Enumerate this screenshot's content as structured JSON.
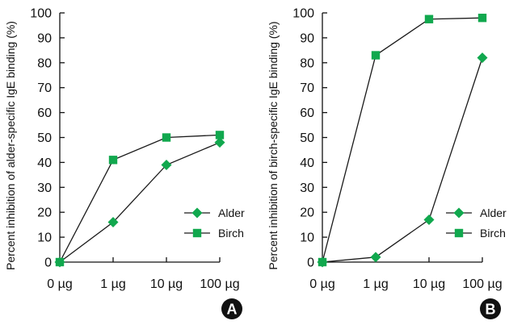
{
  "colors": {
    "marker": "#11a84e",
    "line": "#1a1a1a",
    "badge": "#111111"
  },
  "chart_data": [
    {
      "type": "line",
      "panel_label": "A",
      "categories": [
        "0 µg",
        "1 µg",
        "10 µg",
        "100 µg"
      ],
      "ylabel": "Percent inhibition of alder-specific IgE binding (%)",
      "ylim": [
        0,
        100
      ],
      "yticks": [
        "0",
        "10",
        "20",
        "30",
        "40",
        "50",
        "60",
        "70",
        "80",
        "90",
        "100"
      ],
      "legend_position": "right",
      "series": [
        {
          "name": "Alder",
          "marker": "diamond",
          "values": [
            0,
            16,
            39,
            48
          ]
        },
        {
          "name": "Birch",
          "marker": "square",
          "values": [
            0,
            41,
            50,
            51
          ]
        }
      ]
    },
    {
      "type": "line",
      "panel_label": "B",
      "categories": [
        "0 µg",
        "1 µg",
        "10 µg",
        "100 µg"
      ],
      "ylabel": "Percent inhibition of birch-specific IgE binding (%)",
      "ylim": [
        0,
        100
      ],
      "yticks": [
        "0",
        "10",
        "20",
        "30",
        "40",
        "50",
        "60",
        "70",
        "80",
        "90",
        "100"
      ],
      "legend_position": "right",
      "series": [
        {
          "name": "Alder",
          "marker": "diamond",
          "values": [
            0,
            2,
            17,
            82
          ]
        },
        {
          "name": "Birch",
          "marker": "square",
          "values": [
            0,
            83,
            97.5,
            98
          ]
        }
      ]
    }
  ]
}
